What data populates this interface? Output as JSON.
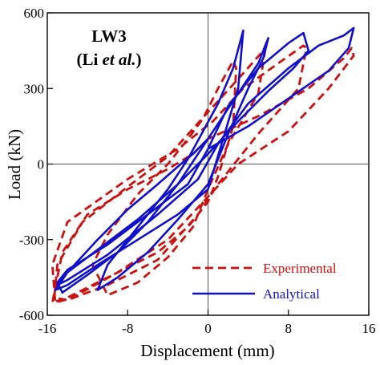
{
  "chart_data": {
    "type": "line",
    "title": "LW3",
    "subtitle_prefix": "(Li ",
    "subtitle_italic": "et al.",
    "subtitle_suffix": ")",
    "xlabel": "Displacement (mm)",
    "ylabel": "Load (kN)",
    "xlim": [
      -16,
      16
    ],
    "ylim": [
      -600,
      600
    ],
    "xticks": [
      -16,
      -8,
      0,
      8,
      16
    ],
    "yticks": [
      -600,
      -300,
      0,
      300,
      600
    ],
    "grid": false,
    "zero_lines": true,
    "legend_position": "bottom-right",
    "series": [
      {
        "name": "Experimental",
        "color": "#cc1111",
        "style": "dashed",
        "x": [
          0,
          -1.5,
          -4,
          -8,
          -12,
          -14.5,
          -15.5,
          -14,
          -10,
          -5,
          -2,
          0,
          1,
          2.5,
          2.8,
          2.5,
          1,
          -0.5,
          -2,
          -4,
          -7,
          -10,
          -11.5,
          -10,
          -7,
          -4,
          -1.5,
          0,
          2,
          5,
          5.8,
          5.5,
          3.5,
          1,
          -1.5,
          -4,
          -8,
          -12.5,
          -15,
          -15.3,
          -14,
          -10,
          -5,
          -1,
          1,
          5,
          9,
          9.8,
          9.5,
          7,
          3.5,
          0.5,
          -3,
          -8,
          -14,
          -15.5,
          -15.2,
          -13.5,
          -9,
          -4,
          0,
          3,
          8,
          12,
          14.5,
          14.3,
          13.5,
          10,
          5,
          0
        ],
        "y": [
          100,
          40,
          -20,
          -100,
          -200,
          -350,
          -550,
          -530,
          -450,
          -350,
          -250,
          -150,
          -50,
          150,
          380,
          410,
          300,
          180,
          100,
          0,
          -120,
          -280,
          -400,
          -520,
          -470,
          -370,
          -250,
          -100,
          80,
          280,
          480,
          450,
          360,
          250,
          140,
          30,
          -90,
          -230,
          -400,
          -530,
          -540,
          -480,
          -380,
          -200,
          -80,
          120,
          300,
          460,
          470,
          400,
          300,
          170,
          60,
          -60,
          -230,
          -400,
          -550,
          -530,
          -430,
          -300,
          -130,
          0,
          130,
          300,
          430,
          460,
          420,
          300,
          190,
          100
        ]
      },
      {
        "name": "Analytical",
        "color": "#1111cc",
        "style": "solid",
        "x": [
          0,
          -1.5,
          -3,
          -5,
          -8,
          -11,
          -14,
          -15.2,
          -14,
          -11,
          -7,
          -3,
          0,
          1.5,
          3,
          3.5,
          2.5,
          1,
          -0.5,
          -2,
          -4,
          -6,
          -8,
          -10,
          -11,
          -9,
          -6,
          -3,
          0,
          2,
          4,
          5.5,
          6,
          5,
          3,
          1,
          -1,
          -3,
          -6,
          -9,
          -12,
          -14.5,
          -15,
          -14,
          -10,
          -6,
          -2,
          0,
          2,
          5,
          8,
          9.5,
          10,
          8.5,
          6,
          3,
          0,
          -3,
          -7,
          -11,
          -14,
          -15,
          -14,
          -10,
          -5,
          -1,
          1,
          4,
          8,
          11,
          13.5,
          14.5,
          14,
          12,
          8,
          4,
          0
        ],
        "y": [
          100,
          40,
          -10,
          -80,
          -180,
          -300,
          -430,
          -500,
          -480,
          -400,
          -300,
          -200,
          -100,
          100,
          300,
          530,
          380,
          240,
          130,
          20,
          -100,
          -200,
          -300,
          -400,
          -500,
          -450,
          -350,
          -220,
          -80,
          120,
          300,
          420,
          500,
          400,
          280,
          160,
          40,
          -80,
          -230,
          -350,
          -440,
          -510,
          -470,
          -420,
          -320,
          -200,
          -80,
          60,
          230,
          380,
          480,
          520,
          450,
          380,
          290,
          170,
          40,
          -80,
          -220,
          -340,
          -430,
          -480,
          -460,
          -360,
          -200,
          -60,
          80,
          240,
          380,
          470,
          510,
          540,
          460,
          370,
          260,
          150,
          60
        ]
      }
    ]
  }
}
